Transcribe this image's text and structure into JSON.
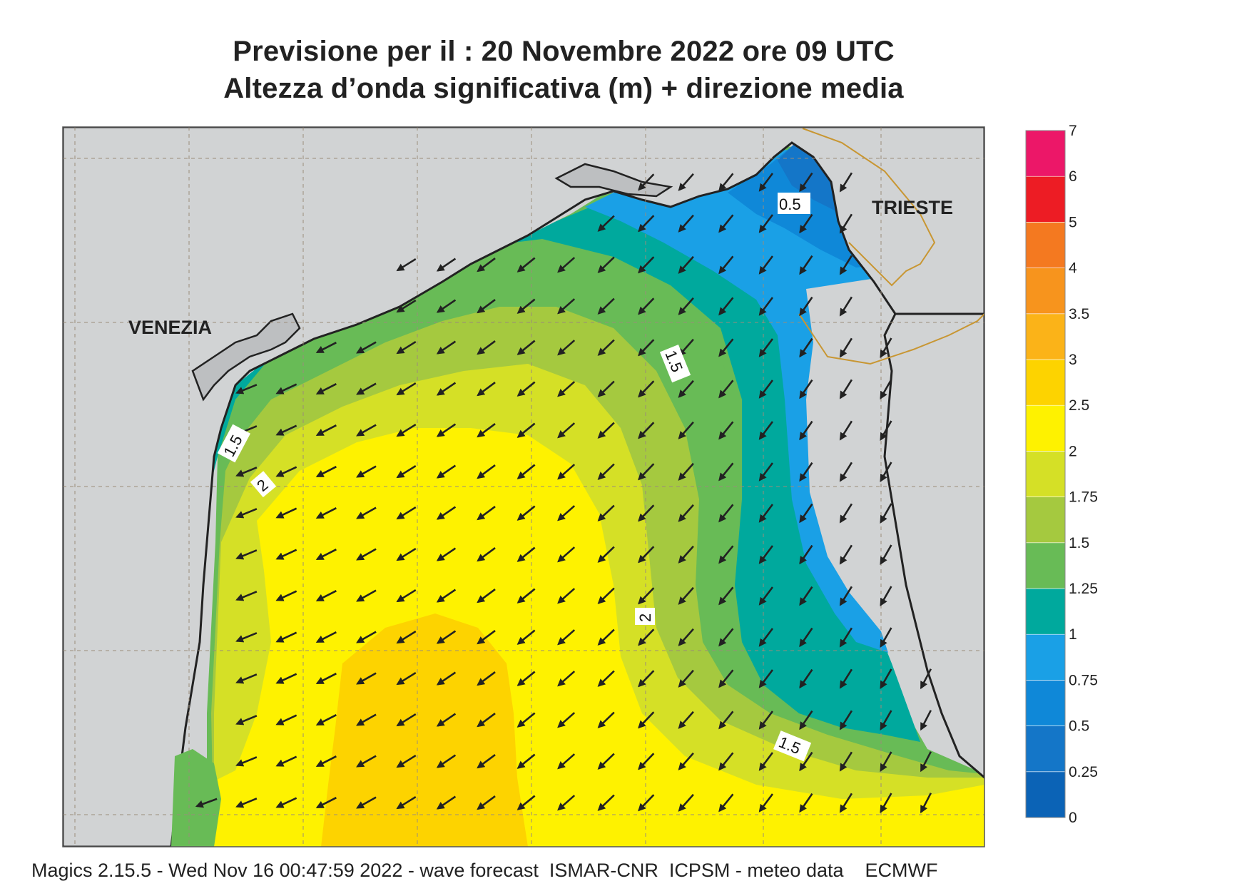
{
  "title_line1": "Previsione per il  :  20 Novembre  2022   ore 09 UTC",
  "title_line2": "Altezza d’onda significativa (m) + direzione media",
  "footer": "Magics 2.15.5 - Wed Nov 16 00:47:59 2022 - wave forecast  ISMAR-CNR  ICPSM - meteo data    ECMWF",
  "cities": [
    {
      "name": "VENEZIA"
    },
    {
      "name": "TRIESTE"
    }
  ],
  "contour_labels": [
    "0.5",
    "1.5",
    "1.5",
    "2",
    "2",
    "1.5"
  ],
  "colors": {
    "land": "#d1d3d4",
    "coast": "#222222",
    "border": "#c89632",
    "grid": "#9a8c7a"
  },
  "legend": {
    "levels": [
      "0",
      "0.25",
      "0.5",
      "0.75",
      "1",
      "1.25",
      "1.5",
      "1.75",
      "2",
      "2.5",
      "3",
      "3.5",
      "4",
      "5",
      "6",
      "7"
    ],
    "colors": [
      "#0b63b6",
      "#1476c8",
      "#0f88d8",
      "#1aa0e6",
      "#00a99d",
      "#68bb56",
      "#a5c93f",
      "#d5e026",
      "#fef200",
      "#fdd300",
      "#fbb318",
      "#f7941d",
      "#f47920",
      "#ed1c24",
      "#ec1768"
    ]
  },
  "chart_data": {
    "type": "heatmap",
    "variable": "Altezza d’onda significativa (m)",
    "colorbar_levels": [
      0,
      0.25,
      0.5,
      0.75,
      1,
      1.25,
      1.5,
      1.75,
      2,
      2.5,
      3,
      3.5,
      4,
      5,
      6,
      7
    ],
    "mean_direction": "wave arrows pointing toward the south-west"
  }
}
